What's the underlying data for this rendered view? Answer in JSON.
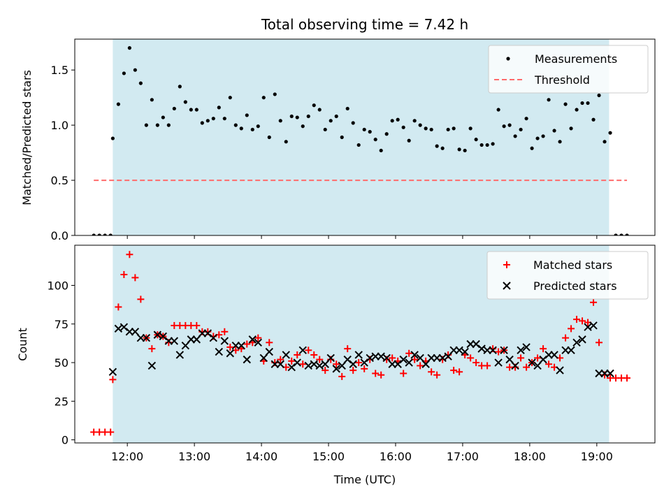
{
  "chart_data": [
    {
      "type": "scatter",
      "title": "Total observing time = 7.42 h",
      "xlabel": "",
      "ylabel": "Matched/Predicted stars",
      "xlim": [
        "11:13",
        "19:52"
      ],
      "ylim": [
        0,
        1.78
      ],
      "yticks": [
        0.0,
        0.5,
        1.0,
        1.5
      ],
      "ytick_labels": [
        "0.0",
        "0.5",
        "1.0",
        "1.5"
      ],
      "observing_window": [
        "11:47",
        "19:11"
      ],
      "observing_window_color": "#add8e6",
      "legend_position": "upper right",
      "series": [
        {
          "name": "Measurements",
          "kind": "scatter",
          "color": "#000000",
          "x": [
            "11:30",
            "11:35",
            "11:40",
            "11:45",
            "11:47",
            "11:52",
            "11:57",
            "12:02",
            "12:07",
            "12:12",
            "12:17",
            "12:22",
            "12:27",
            "12:32",
            "12:37",
            "12:42",
            "12:47",
            "12:52",
            "12:57",
            "13:02",
            "13:07",
            "13:12",
            "13:17",
            "13:22",
            "13:27",
            "13:32",
            "13:37",
            "13:42",
            "13:47",
            "13:52",
            "13:57",
            "14:02",
            "14:07",
            "14:12",
            "14:17",
            "14:22",
            "14:27",
            "14:32",
            "14:37",
            "14:42",
            "14:47",
            "14:52",
            "14:57",
            "15:02",
            "15:07",
            "15:12",
            "15:17",
            "15:22",
            "15:27",
            "15:32",
            "15:37",
            "15:42",
            "15:47",
            "15:52",
            "15:57",
            "16:02",
            "16:07",
            "16:12",
            "16:17",
            "16:22",
            "16:27",
            "16:32",
            "16:37",
            "16:42",
            "16:47",
            "16:52",
            "16:57",
            "17:02",
            "17:07",
            "17:12",
            "17:17",
            "17:22",
            "17:27",
            "17:32",
            "17:37",
            "17:42",
            "17:47",
            "17:52",
            "17:57",
            "18:02",
            "18:07",
            "18:12",
            "18:17",
            "18:22",
            "18:27",
            "18:32",
            "18:37",
            "18:42",
            "18:47",
            "18:52",
            "18:57",
            "19:02",
            "19:07",
            "19:12",
            "19:17",
            "19:22",
            "19:27"
          ],
          "y": [
            0,
            0,
            0,
            0,
            0.88,
            1.19,
            1.47,
            1.7,
            1.5,
            1.38,
            1.0,
            1.23,
            1.0,
            1.07,
            1.0,
            1.15,
            1.35,
            1.21,
            1.14,
            1.14,
            1.02,
            1.04,
            1.06,
            1.16,
            1.06,
            1.25,
            1.0,
            0.97,
            1.09,
            0.96,
            0.99,
            1.25,
            0.89,
            1.28,
            1.04,
            0.85,
            1.08,
            1.07,
            0.99,
            1.08,
            1.18,
            1.14,
            0.96,
            1.04,
            1.08,
            0.89,
            1.15,
            1.02,
            0.82,
            0.96,
            0.94,
            0.87,
            0.77,
            0.92,
            1.04,
            1.05,
            0.98,
            0.86,
            1.04,
            1.0,
            0.97,
            0.96,
            0.81,
            0.79,
            0.96,
            0.97,
            0.78,
            0.77,
            0.97,
            0.87,
            0.82,
            0.82,
            0.83,
            1.14,
            0.99,
            1.0,
            0.9,
            0.96,
            1.06,
            0.79,
            0.88,
            0.9,
            1.23,
            0.95,
            0.85,
            1.19,
            0.97,
            1.14,
            1.2,
            1.2,
            1.05,
            1.27,
            0.85,
            0.93,
            0,
            0,
            0
          ]
        },
        {
          "name": "Threshold",
          "kind": "dashed-line",
          "color": "#ff6b6b",
          "x": [
            "11:30",
            "19:27"
          ],
          "y": [
            0.5,
            0.5
          ]
        }
      ],
      "xticks": [
        "12:00",
        "13:00",
        "14:00",
        "15:00",
        "16:00",
        "17:00",
        "18:00",
        "19:00"
      ]
    },
    {
      "type": "scatter",
      "title": "",
      "xlabel": "Time (UTC)",
      "ylabel": "Count",
      "xlim": [
        "11:13",
        "19:52"
      ],
      "ylim": [
        -2,
        126
      ],
      "yticks": [
        0,
        25,
        50,
        75,
        100
      ],
      "ytick_labels": [
        "0",
        "25",
        "50",
        "75",
        "100"
      ],
      "xticks": [
        "12:00",
        "13:00",
        "14:00",
        "15:00",
        "16:00",
        "17:00",
        "18:00",
        "19:00"
      ],
      "xtick_labels": [
        "12:00",
        "13:00",
        "14:00",
        "15:00",
        "16:00",
        "17:00",
        "18:00",
        "19:00"
      ],
      "observing_window": [
        "11:47",
        "19:11"
      ],
      "observing_window_color": "#add8e6",
      "legend_position": "upper right",
      "series": [
        {
          "name": "Matched stars",
          "kind": "plus",
          "color": "#ff0000",
          "x": [
            "11:30",
            "11:35",
            "11:40",
            "11:45",
            "11:47",
            "11:52",
            "11:57",
            "12:02",
            "12:07",
            "12:12",
            "12:17",
            "12:22",
            "12:27",
            "12:32",
            "12:37",
            "12:42",
            "12:47",
            "12:52",
            "12:57",
            "13:02",
            "13:07",
            "13:12",
            "13:17",
            "13:22",
            "13:27",
            "13:32",
            "13:37",
            "13:42",
            "13:47",
            "13:52",
            "13:57",
            "14:02",
            "14:07",
            "14:12",
            "14:17",
            "14:22",
            "14:27",
            "14:32",
            "14:37",
            "14:42",
            "14:47",
            "14:52",
            "14:57",
            "15:02",
            "15:07",
            "15:12",
            "15:17",
            "15:22",
            "15:27",
            "15:32",
            "15:37",
            "15:42",
            "15:47",
            "15:52",
            "15:57",
            "16:02",
            "16:07",
            "16:12",
            "16:17",
            "16:22",
            "16:27",
            "16:32",
            "16:37",
            "16:42",
            "16:47",
            "16:52",
            "16:57",
            "17:02",
            "17:07",
            "17:12",
            "17:17",
            "17:22",
            "17:27",
            "17:32",
            "17:37",
            "17:42",
            "17:47",
            "17:52",
            "17:57",
            "18:02",
            "18:07",
            "18:12",
            "18:17",
            "18:22",
            "18:27",
            "18:32",
            "18:37",
            "18:42",
            "18:47",
            "18:52",
            "18:57",
            "19:02",
            "19:07",
            "19:12",
            "19:17",
            "19:22",
            "19:27"
          ],
          "y": [
            5,
            5,
            5,
            5,
            39,
            86,
            107,
            120,
            105,
            91,
            66,
            59,
            68,
            67,
            63,
            74,
            74,
            74,
            74,
            74,
            70,
            70,
            67,
            68,
            70,
            60,
            58,
            59,
            62,
            63,
            66,
            51,
            63,
            50,
            52,
            47,
            51,
            55,
            49,
            58,
            55,
            52,
            45,
            52,
            49,
            41,
            59,
            45,
            50,
            46,
            52,
            43,
            42,
            52,
            53,
            51,
            43,
            56,
            52,
            48,
            51,
            44,
            42,
            52,
            55,
            45,
            44,
            55,
            53,
            50,
            48,
            48,
            59,
            57,
            58,
            47,
            47,
            53,
            47,
            50,
            53,
            59,
            49,
            47,
            53,
            66,
            72,
            78,
            77,
            76,
            89,
            63,
            42,
            40,
            40,
            40,
            40
          ]
        },
        {
          "name": "Predicted stars",
          "kind": "cross",
          "color": "#000000",
          "x": [
            "11:47",
            "11:52",
            "11:57",
            "12:02",
            "12:07",
            "12:12",
            "12:17",
            "12:22",
            "12:27",
            "12:32",
            "12:37",
            "12:42",
            "12:47",
            "12:52",
            "12:57",
            "13:02",
            "13:07",
            "13:12",
            "13:17",
            "13:22",
            "13:27",
            "13:32",
            "13:37",
            "13:42",
            "13:47",
            "13:52",
            "13:57",
            "14:02",
            "14:07",
            "14:12",
            "14:17",
            "14:22",
            "14:27",
            "14:32",
            "14:37",
            "14:42",
            "14:47",
            "14:52",
            "14:57",
            "15:02",
            "15:07",
            "15:12",
            "15:17",
            "15:22",
            "15:27",
            "15:32",
            "15:37",
            "15:42",
            "15:47",
            "15:52",
            "15:57",
            "16:02",
            "16:07",
            "16:12",
            "16:17",
            "16:22",
            "16:27",
            "16:32",
            "16:37",
            "16:42",
            "16:47",
            "16:52",
            "16:57",
            "17:02",
            "17:07",
            "17:12",
            "17:17",
            "17:22",
            "17:27",
            "17:32",
            "17:37",
            "17:42",
            "17:47",
            "17:52",
            "17:57",
            "18:02",
            "18:07",
            "18:12",
            "18:17",
            "18:22",
            "18:27",
            "18:32",
            "18:37",
            "18:42",
            "18:47",
            "18:52",
            "18:57",
            "19:02",
            "19:07",
            "19:12"
          ],
          "y": [
            44,
            72,
            73,
            70,
            70,
            66,
            66,
            48,
            68,
            67,
            64,
            64,
            55,
            61,
            65,
            65,
            69,
            69,
            66,
            57,
            64,
            56,
            61,
            61,
            52,
            65,
            63,
            53,
            57,
            49,
            49,
            55,
            47,
            50,
            58,
            48,
            49,
            48,
            49,
            53,
            46,
            48,
            52,
            49,
            55,
            50,
            53,
            54,
            54,
            53,
            49,
            49,
            52,
            50,
            55,
            53,
            49,
            53,
            53,
            53,
            54,
            58,
            58,
            57,
            62,
            62,
            59,
            58,
            58,
            50,
            58,
            52,
            48,
            58,
            60,
            50,
            48,
            52,
            55,
            55,
            45,
            58,
            58,
            63,
            65,
            73,
            74,
            43,
            43,
            43
          ]
        }
      ]
    }
  ]
}
